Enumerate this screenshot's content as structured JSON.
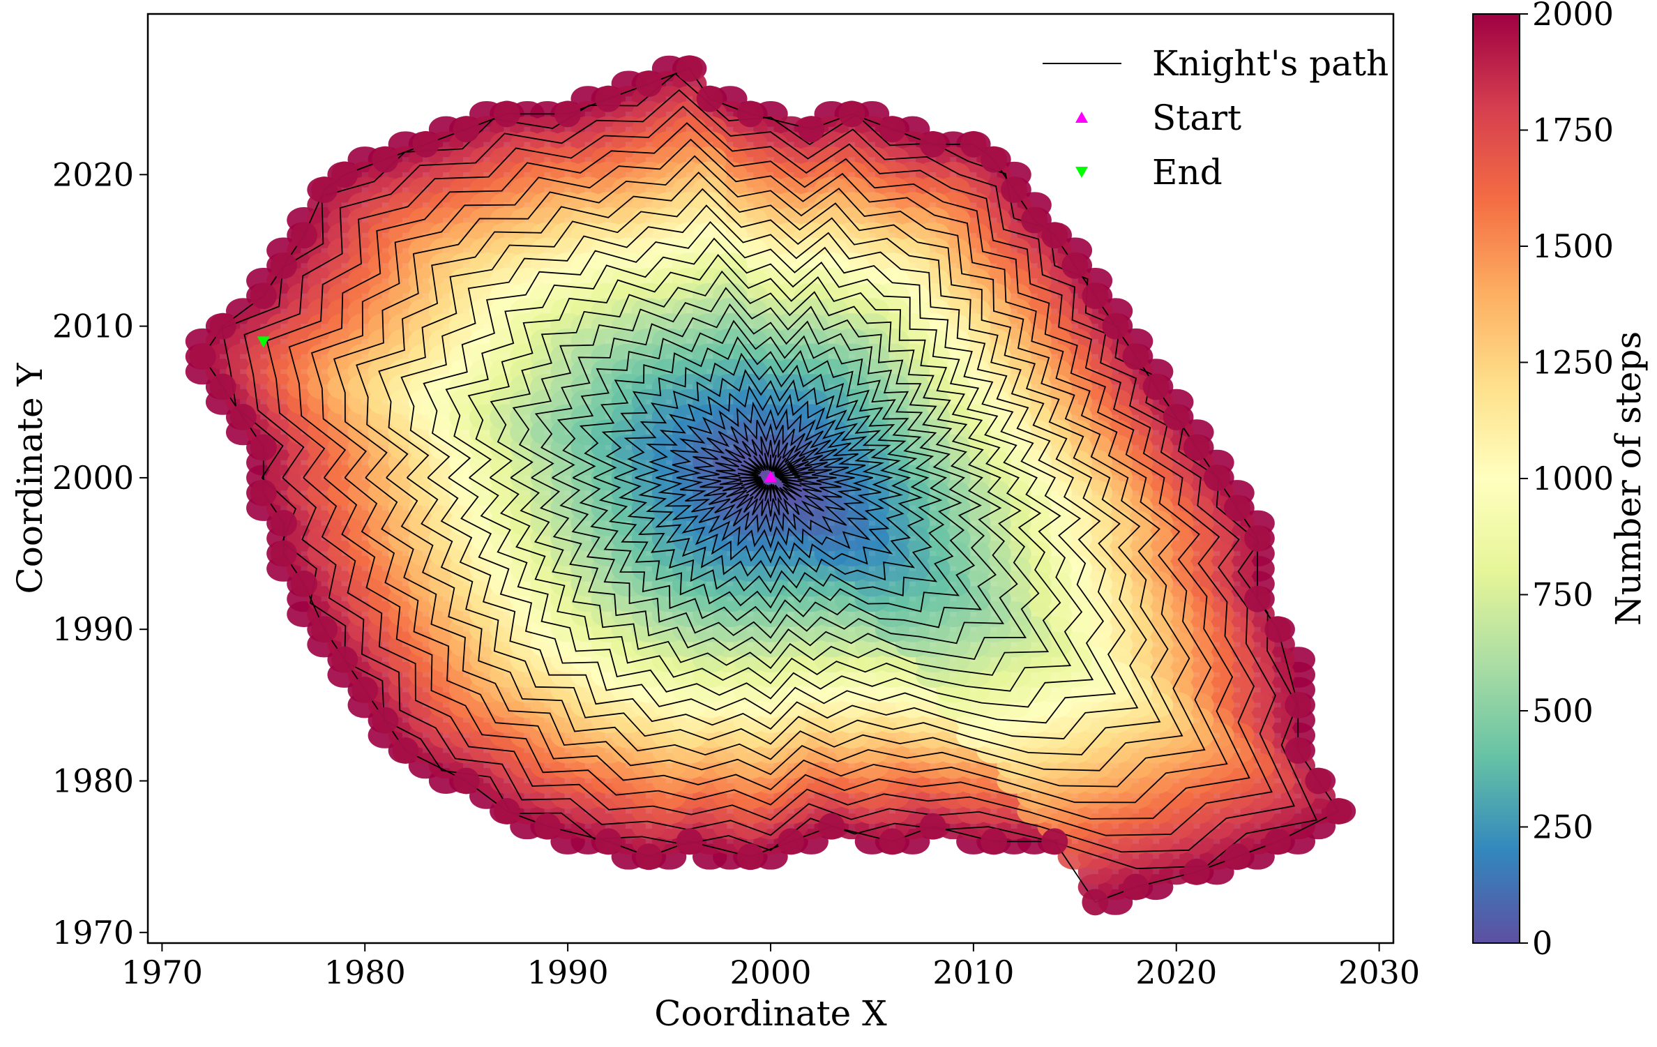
{
  "chart_data": {
    "type": "scatter",
    "xlabel": "Coordinate X",
    "ylabel": "Coordinate Y",
    "xlim": [
      1969.3,
      2030.7
    ],
    "ylim": [
      1969.3,
      2030.6
    ],
    "xticks": [
      1970,
      1980,
      1990,
      2000,
      2010,
      2020,
      2030
    ],
    "yticks": [
      1970,
      1980,
      1990,
      2000,
      2010,
      2020
    ],
    "grid": false,
    "legend_position": "top-right",
    "legend": {
      "path_label": "Knight's path",
      "start_label": "Start",
      "end_label": "End"
    },
    "colorbar": {
      "label": "Number of steps",
      "colormap": "Spectral_r",
      "range": [
        0,
        2000
      ],
      "ticks": [
        0,
        250,
        500,
        750,
        1000,
        1250,
        1500,
        1750,
        2000
      ]
    },
    "start": {
      "x": 2000,
      "y": 2000
    },
    "end": {
      "x": 1975,
      "y": 2009
    },
    "total_steps": 2000,
    "boundary_points": [
      [
        1972,
        2008
      ],
      [
        1973,
        2010
      ],
      [
        1975,
        2012
      ],
      [
        1976,
        2014
      ],
      [
        1977,
        2016
      ],
      [
        1978,
        2019
      ],
      [
        1979,
        2020
      ],
      [
        1981,
        2021
      ],
      [
        1983,
        2022
      ],
      [
        1985,
        2023
      ],
      [
        1987,
        2024
      ],
      [
        1990,
        2024
      ],
      [
        1992,
        2025
      ],
      [
        1994,
        2026
      ],
      [
        1996,
        2027
      ],
      [
        1997,
        2025
      ],
      [
        1999,
        2024
      ],
      [
        2002,
        2023
      ],
      [
        2004,
        2024
      ],
      [
        2006,
        2023
      ],
      [
        2008,
        2022
      ],
      [
        2010,
        2022
      ],
      [
        2011,
        2021
      ],
      [
        2012,
        2019
      ],
      [
        2013,
        2017
      ],
      [
        2014,
        2016
      ],
      [
        2015,
        2014
      ],
      [
        2016,
        2012
      ],
      [
        2017,
        2010
      ],
      [
        2018,
        2008
      ],
      [
        2019,
        2006
      ],
      [
        2020,
        2004
      ],
      [
        2021,
        2002
      ],
      [
        2022,
        2000
      ],
      [
        2023,
        1998
      ],
      [
        2024,
        1996
      ],
      [
        2024,
        1992
      ],
      [
        2025,
        1990
      ],
      [
        2026,
        1985
      ],
      [
        2026,
        1982
      ],
      [
        2027,
        1980
      ],
      [
        2028,
        1978
      ],
      [
        2025,
        1976
      ],
      [
        2023,
        1975
      ],
      [
        2021,
        1974
      ],
      [
        2018,
        1973
      ],
      [
        2016,
        1972
      ],
      [
        2014,
        1976
      ],
      [
        2011,
        1976
      ],
      [
        2008,
        1977
      ],
      [
        2006,
        1976
      ],
      [
        2003,
        1977
      ],
      [
        2001,
        1976
      ],
      [
        1999,
        1975
      ],
      [
        1996,
        1976
      ],
      [
        1994,
        1975
      ],
      [
        1992,
        1976
      ],
      [
        1989,
        1977
      ],
      [
        1987,
        1978
      ],
      [
        1985,
        1980
      ],
      [
        1982,
        1982
      ],
      [
        1981,
        1984
      ],
      [
        1980,
        1986
      ],
      [
        1979,
        1988
      ],
      [
        1978,
        1990
      ],
      [
        1977,
        1993
      ],
      [
        1976,
        1995
      ],
      [
        1976,
        1997
      ],
      [
        1975,
        1999
      ],
      [
        1975,
        2002
      ],
      [
        1974,
        2004
      ],
      [
        1973,
        2006
      ],
      [
        1972,
        2008
      ]
    ]
  }
}
